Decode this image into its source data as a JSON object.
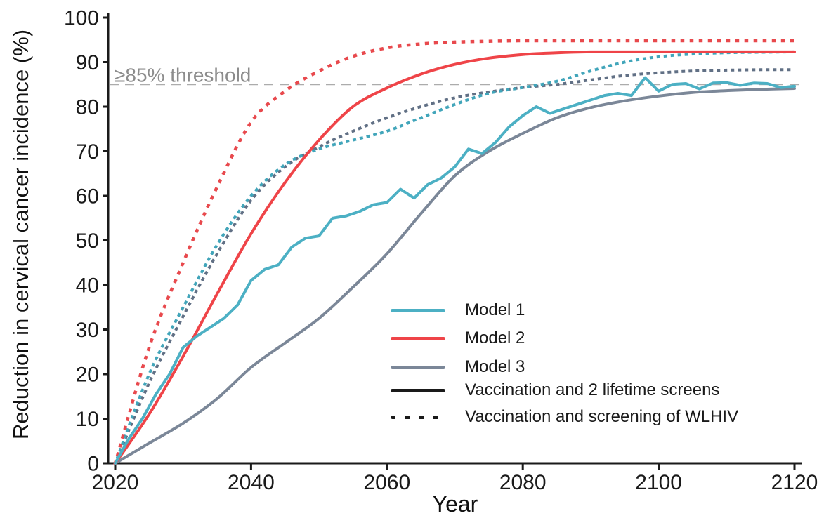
{
  "figure": {
    "background": "#ffffff",
    "axis_color": "#1a1a1a"
  },
  "chart_data": {
    "type": "line",
    "title": "",
    "xlabel": "Year",
    "ylabel": "Reduction in cervical cancer incidence (%)",
    "xlim": [
      2020,
      2120
    ],
    "ylim": [
      0,
      100
    ],
    "x_ticks": [
      "2020",
      "2040",
      "2060",
      "2080",
      "2100",
      "2120"
    ],
    "y_ticks": [
      "0",
      "10",
      "20",
      "30",
      "40",
      "50",
      "60",
      "70",
      "80",
      "90",
      "100"
    ],
    "grid": false,
    "legend_position": "inside lower right",
    "threshold": {
      "value": 85,
      "label": "≥85% threshold",
      "line_color": "#acacac",
      "label_color": "#8c8c8c"
    },
    "series": [
      {
        "id": "model3-dotted",
        "model": "Model 3",
        "scenario": "Vaccination and screening of WLHIV",
        "style": "dotted",
        "color": "#617085",
        "x_start": 2020,
        "x_step": 5,
        "y": [
          0,
          18,
          33,
          47,
          59,
          66.5,
          71,
          74.5,
          77.5,
          80,
          82,
          83.3,
          84.3,
          85,
          86,
          87,
          87.6,
          88,
          88.2,
          88.3,
          88.3
        ]
      },
      {
        "id": "model1-dotted",
        "model": "Model 1",
        "scenario": "Vaccination and screening of WLHIV",
        "style": "dotted",
        "color": "#41a5ba",
        "x_start": 2020,
        "x_step": 5,
        "y": [
          0,
          20,
          35,
          49,
          60,
          67,
          70.5,
          72.5,
          74.5,
          77.5,
          80.5,
          83,
          84.3,
          85.7,
          88,
          90,
          91.2,
          91.8,
          92.1,
          92.2,
          92.3
        ]
      },
      {
        "id": "model2-dotted",
        "model": "Model 2",
        "scenario": "Vaccination and screening of WLHIV",
        "style": "dotted",
        "color": "#e8494d",
        "x_start": 2020,
        "x_step": 5,
        "y": [
          0,
          26,
          45,
          62,
          76.5,
          83.5,
          88,
          91.3,
          93.2,
          94.1,
          94.5,
          94.7,
          94.8,
          94.8,
          94.8,
          94.8,
          94.8,
          94.8,
          94.8,
          94.8,
          94.8
        ]
      },
      {
        "id": "model3-solid",
        "model": "Model 3",
        "scenario": "Vaccination and 2 lifetime screens",
        "style": "solid",
        "color": "#7b8798",
        "x_start": 2020,
        "x_step": 5,
        "y": [
          0,
          4.5,
          9,
          14.5,
          21.5,
          27,
          32.5,
          39.5,
          47,
          56,
          64.5,
          70,
          74,
          77.5,
          79.8,
          81.3,
          82.4,
          83.2,
          83.6,
          83.9,
          84.1
        ]
      },
      {
        "id": "model2-solid",
        "model": "Model 2",
        "scenario": "Vaccination and 2 lifetime screens",
        "style": "solid",
        "color": "#ef4448",
        "x_start": 2020,
        "x_step": 5,
        "y": [
          0,
          11,
          24,
          38,
          51.5,
          63,
          72.5,
          80,
          84.2,
          87.3,
          89.5,
          90.9,
          91.7,
          92.1,
          92.3,
          92.3,
          92.3,
          92.3,
          92.3,
          92.3,
          92.3
        ]
      },
      {
        "id": "model1-solid",
        "model": "Model 1",
        "scenario": "Vaccination and 2 lifetime screens",
        "style": "solid",
        "jagged": true,
        "color": "#4cb0c4",
        "x_start": 2020,
        "x_step": 2,
        "y": [
          0,
          5.5,
          10,
          15.5,
          20,
          26,
          28.5,
          30.5,
          32.5,
          35.5,
          41,
          43.5,
          44.5,
          48.5,
          50.5,
          51,
          55,
          55.5,
          56.5,
          58,
          58.5,
          61.5,
          59.5,
          62.5,
          64,
          66.5,
          70.5,
          69.5,
          72,
          75.5,
          78,
          80,
          78.5,
          79.5,
          80.5,
          81.5,
          82.5,
          83,
          82.5,
          86.5,
          83.5,
          85,
          85.2,
          84,
          85.3,
          85.4,
          84.8,
          85.3,
          85.2,
          84.3,
          84.6
        ]
      }
    ],
    "legend": {
      "items": [
        {
          "label": "Model 1",
          "color": "#4cb0c4",
          "style": "solid"
        },
        {
          "label": "Model 2",
          "color": "#ef4448",
          "style": "solid"
        },
        {
          "label": "Model 3",
          "color": "#7b8798",
          "style": "solid"
        },
        {
          "label": "Vaccination and 2 lifetime screens",
          "color": "#1a1a1a",
          "style": "solid"
        },
        {
          "label": "Vaccination and screening of WLHIV",
          "color": "#1a1a1a",
          "style": "dotted"
        }
      ]
    }
  }
}
